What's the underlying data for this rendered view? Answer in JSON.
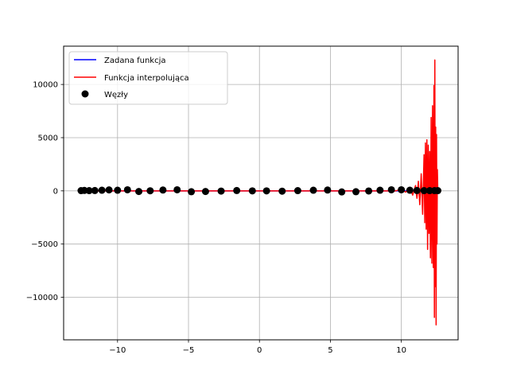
{
  "chart_data": {
    "type": "line",
    "xlim": [
      -13.8,
      14.0
    ],
    "ylim": [
      -14000,
      13600
    ],
    "grid": true,
    "legend_position": "top-left",
    "x_ticks": [
      -10,
      -5,
      0,
      5,
      10
    ],
    "x_tick_labels": [
      "−10",
      "−5",
      "0",
      "5",
      "10"
    ],
    "y_ticks": [
      -10000,
      -5000,
      0,
      5000,
      10000
    ],
    "y_tick_labels": [
      "−10000",
      "−5000",
      "0",
      "5000",
      "10000"
    ],
    "legend": [
      {
        "label": "Zadana funkcja",
        "color": "#0000ff",
        "kind": "line"
      },
      {
        "label": "Funkcja interpolująca",
        "color": "#ff0000",
        "kind": "line"
      },
      {
        "label": "Węzły",
        "color": "#000000",
        "kind": "marker"
      }
    ],
    "series": [
      {
        "kind": "line",
        "color": "#0000ff",
        "x": [
          -12.57,
          -10,
          -7.5,
          -5,
          -2.5,
          0,
          2.5,
          5,
          7.5,
          10,
          12.57
        ],
        "y": [
          0,
          0,
          0,
          0,
          0,
          0,
          0,
          0,
          0,
          0,
          0
        ]
      },
      {
        "kind": "line",
        "color": "#ff0000",
        "x": [
          -12.57,
          -10,
          -7.5,
          -5,
          -2.5,
          0,
          2.5,
          5,
          7.5,
          9.6,
          10.0,
          10.3,
          10.6,
          10.8,
          11.0,
          11.1,
          11.2,
          11.3,
          11.4,
          11.5,
          11.6,
          11.65,
          11.7,
          11.75,
          11.8,
          11.85,
          11.9,
          11.95,
          12.0,
          12.05,
          12.1,
          12.15,
          12.2,
          12.25,
          12.3,
          12.33,
          12.36,
          12.39,
          12.42,
          12.45,
          12.48,
          12.51,
          12.54,
          12.57
        ],
        "y": [
          0,
          0,
          0,
          0,
          0,
          0,
          0,
          0,
          0,
          0,
          150,
          -120,
          300,
          -400,
          500,
          -700,
          900,
          -1300,
          1600,
          -2200,
          3400,
          -3000,
          4500,
          -3600,
          4800,
          -5500,
          4300,
          -4000,
          3700,
          -6300,
          6900,
          -6800,
          8000,
          -7200,
          9900,
          -11900,
          12300,
          -9000,
          6000,
          -12600,
          5300,
          -5000,
          2000,
          0
        ]
      },
      {
        "kind": "scatter",
        "color": "#000000",
        "x": [
          -12.57,
          -12.34,
          -12.0,
          -11.6,
          -11.1,
          -10.6,
          -10.0,
          -9.3,
          -8.5,
          -7.7,
          -6.8,
          -5.8,
          -4.8,
          -3.8,
          -2.7,
          -1.6,
          -0.5,
          0.5,
          1.6,
          2.7,
          3.8,
          4.8,
          5.8,
          6.8,
          7.7,
          8.5,
          9.3,
          10.0,
          10.6,
          11.1,
          11.6,
          12.0,
          12.34,
          12.57
        ],
        "y": [
          20,
          40,
          20,
          30,
          60,
          90,
          60,
          100,
          -60,
          10,
          80,
          100,
          -80,
          -60,
          -20,
          30,
          0,
          0,
          -30,
          20,
          60,
          80,
          -100,
          -80,
          -10,
          60,
          100,
          100,
          60,
          30,
          20,
          20,
          20,
          20
        ]
      }
    ]
  }
}
